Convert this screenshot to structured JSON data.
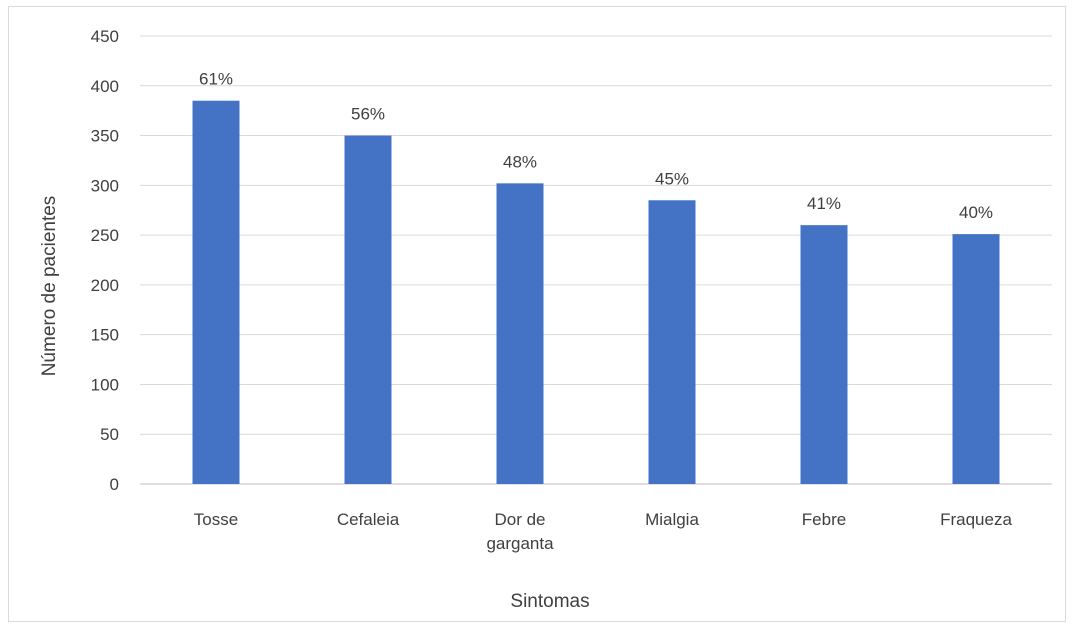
{
  "chart_data": {
    "type": "bar",
    "xlabel": "Sintomas",
    "ylabel": "Número de pacientes",
    "categories": [
      "Tosse",
      "Cefaleia",
      "Dor de garganta",
      "Mialgia",
      "Febre",
      "Fraqueza"
    ],
    "category_lines": [
      [
        "Tosse"
      ],
      [
        "Cefaleia"
      ],
      [
        "Dor de",
        "garganta"
      ],
      [
        "Mialgia"
      ],
      [
        "Febre"
      ],
      [
        "Fraqueza"
      ]
    ],
    "values": [
      385,
      350,
      302,
      285,
      260,
      251
    ],
    "data_labels": [
      "61%",
      "56%",
      "48%",
      "45%",
      "41%",
      "40%"
    ],
    "ylim": [
      0,
      450
    ],
    "yticks": [
      0,
      50,
      100,
      150,
      200,
      250,
      300,
      350,
      400,
      450
    ],
    "grid": true,
    "legend": "none",
    "colors": {
      "bar": "#4472c4",
      "grid": "#d9d9d9",
      "text": "#404040"
    }
  }
}
